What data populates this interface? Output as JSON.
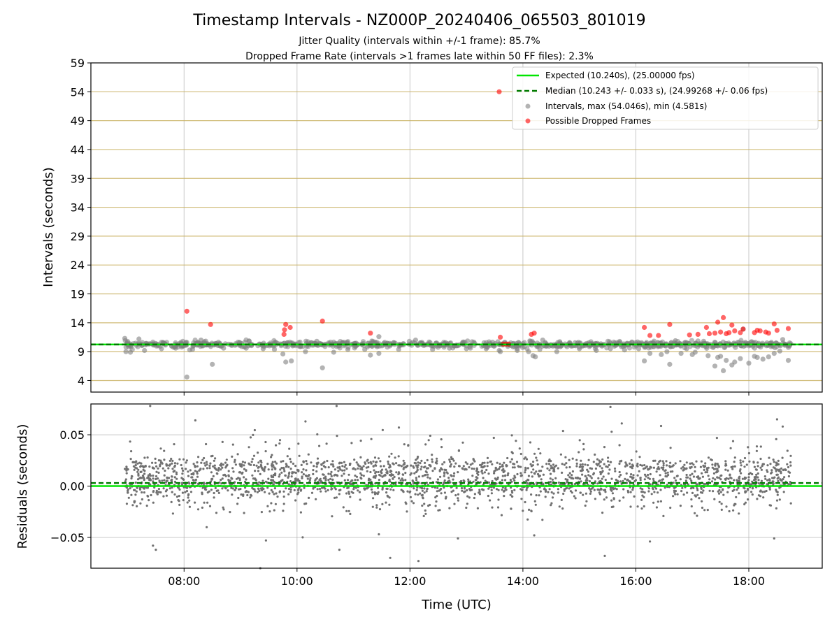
{
  "figure": {
    "title": "Timestamp Intervals - NZ000P_20240406_065503_801019",
    "subtitle1": "Jitter Quality (intervals within +/-1 frame): 85.7%",
    "subtitle2": "Dropped Frame Rate (intervals >1 frames late within 50 FF files): 2.3%"
  },
  "chart_data": [
    {
      "type": "scatter",
      "ylabel": "Intervals (seconds)",
      "ylim": [
        2,
        59
      ],
      "yticks": [
        4,
        9,
        14,
        19,
        24,
        29,
        34,
        39,
        44,
        49,
        54,
        59
      ],
      "xlim_hours": [
        6.35,
        19.3
      ],
      "grid": true,
      "legend_position": "top-right",
      "legend": [
        "Expected (10.240s), (25.00000 fps)",
        "Median (10.243 +/- 0.033 s), (24.99268 +/- 0.06 fps)",
        "Intervals, max (54.046s), min (4.581s)",
        "Possible Dropped Frames"
      ],
      "expected_line": 10.24,
      "median_line": 10.243,
      "series": [
        {
          "name": "Intervals, max (54.046s), min (4.581s)",
          "color": "#808080",
          "points": [
            [
              6.95,
              11.3
            ],
            [
              6.97,
              9.0
            ],
            [
              7.05,
              8.9
            ],
            [
              7.2,
              11.2
            ],
            [
              7.3,
              9.2
            ],
            [
              7.6,
              9.5
            ],
            [
              7.85,
              9.6
            ],
            [
              8.05,
              4.6
            ],
            [
              8.1,
              9.3
            ],
            [
              8.15,
              9.4
            ],
            [
              8.3,
              11.0
            ],
            [
              8.5,
              6.8
            ],
            [
              8.7,
              9.6
            ],
            [
              9.1,
              9.6
            ],
            [
              9.4,
              9.5
            ],
            [
              9.6,
              9.4
            ],
            [
              9.75,
              8.6
            ],
            [
              9.8,
              7.2
            ],
            [
              9.9,
              7.4
            ],
            [
              10.15,
              9.0
            ],
            [
              10.35,
              10.8
            ],
            [
              10.45,
              6.2
            ],
            [
              10.65,
              8.9
            ],
            [
              10.9,
              9.4
            ],
            [
              11.2,
              9.4
            ],
            [
              11.3,
              8.4
            ],
            [
              11.45,
              8.7
            ],
            [
              11.45,
              11.6
            ],
            [
              11.8,
              9.4
            ],
            [
              12.1,
              11.0
            ],
            [
              12.4,
              9.4
            ],
            [
              12.7,
              9.6
            ],
            [
              13.0,
              9.5
            ],
            [
              13.35,
              9.5
            ],
            [
              13.58,
              9.2
            ],
            [
              13.6,
              9.0
            ],
            [
              13.9,
              9.2
            ],
            [
              14.1,
              9.0
            ],
            [
              14.18,
              8.3
            ],
            [
              14.22,
              8.1
            ],
            [
              14.3,
              9.4
            ],
            [
              14.35,
              11.0
            ],
            [
              14.6,
              9.0
            ],
            [
              15.0,
              9.5
            ],
            [
              15.3,
              9.2
            ],
            [
              15.55,
              9.5
            ],
            [
              15.8,
              9.3
            ],
            [
              16.05,
              9.5
            ],
            [
              16.15,
              7.4
            ],
            [
              16.25,
              8.7
            ],
            [
              16.45,
              8.5
            ],
            [
              16.55,
              9.0
            ],
            [
              16.6,
              6.8
            ],
            [
              16.7,
              10.9
            ],
            [
              16.8,
              8.7
            ],
            [
              16.9,
              9.5
            ],
            [
              17.0,
              8.5
            ],
            [
              17.05,
              8.9
            ],
            [
              17.2,
              10.8
            ],
            [
              17.28,
              8.3
            ],
            [
              17.4,
              6.5
            ],
            [
              17.45,
              8.0
            ],
            [
              17.5,
              8.2
            ],
            [
              17.55,
              5.7
            ],
            [
              17.6,
              7.5
            ],
            [
              17.7,
              6.7
            ],
            [
              17.75,
              7.2
            ],
            [
              17.85,
              7.8
            ],
            [
              17.9,
              12.9
            ],
            [
              18.0,
              7.0
            ],
            [
              18.1,
              8.2
            ],
            [
              18.15,
              8.0
            ],
            [
              18.25,
              7.7
            ],
            [
              18.35,
              8.1
            ],
            [
              18.4,
              10.6
            ],
            [
              18.45,
              8.7
            ],
            [
              18.55,
              9.1
            ],
            [
              18.6,
              11.1
            ],
            [
              18.7,
              7.5
            ],
            [
              18.72,
              10.0
            ]
          ]
        },
        {
          "name": "Possible Dropped Frames",
          "color": "#ff0000",
          "points": [
            [
              8.05,
              16.0
            ],
            [
              8.47,
              13.7
            ],
            [
              9.77,
              12.0
            ],
            [
              9.78,
              12.8
            ],
            [
              9.8,
              13.7
            ],
            [
              9.88,
              13.2
            ],
            [
              10.45,
              14.3
            ],
            [
              11.3,
              12.2
            ],
            [
              13.58,
              54.0
            ],
            [
              13.6,
              11.5
            ],
            [
              13.65,
              10.3
            ],
            [
              13.7,
              10.3
            ],
            [
              13.75,
              10.3
            ],
            [
              14.15,
              12.0
            ],
            [
              14.2,
              12.2
            ],
            [
              16.15,
              13.2
            ],
            [
              16.25,
              11.8
            ],
            [
              16.4,
              11.8
            ],
            [
              16.6,
              13.7
            ],
            [
              16.95,
              11.9
            ],
            [
              17.1,
              12.0
            ],
            [
              17.25,
              13.2
            ],
            [
              17.3,
              12.1
            ],
            [
              17.4,
              12.2
            ],
            [
              17.45,
              14.1
            ],
            [
              17.5,
              12.4
            ],
            [
              17.55,
              14.9
            ],
            [
              17.6,
              12.1
            ],
            [
              17.65,
              12.3
            ],
            [
              17.7,
              13.6
            ],
            [
              17.75,
              12.6
            ],
            [
              17.85,
              12.3
            ],
            [
              17.9,
              12.9
            ],
            [
              18.1,
              12.3
            ],
            [
              18.15,
              12.7
            ],
            [
              18.2,
              12.6
            ],
            [
              18.3,
              12.4
            ],
            [
              18.35,
              12.2
            ],
            [
              18.45,
              13.8
            ],
            [
              18.5,
              12.7
            ],
            [
              18.7,
              13.0
            ]
          ]
        }
      ]
    },
    {
      "type": "scatter",
      "xlabel": "Time (UTC)",
      "ylabel": "Residuals (seconds)",
      "ylim": [
        -0.08,
        0.08
      ],
      "yticks": [
        0.05,
        0.0,
        -0.05
      ],
      "ytick_labels": [
        "0.05",
        "0.00",
        "−0.05"
      ],
      "xticks_hours": [
        8,
        10,
        12,
        14,
        16,
        18
      ],
      "xtick_labels": [
        "08:00",
        "10:00",
        "12:00",
        "14:00",
        "16:00",
        "18:00"
      ],
      "xlim_hours": [
        6.35,
        19.3
      ],
      "grid": true,
      "expected_line": 0.0,
      "median_line": 0.003,
      "series": [
        {
          "name": "Residuals",
          "color": "#707070",
          "time_range_hours": [
            6.95,
            18.75
          ],
          "count": 2400,
          "bands": [
            {
              "center": 0.001,
              "spread": 0.011,
              "fraction": 0.55
            },
            {
              "center": 0.019,
              "spread": 0.009,
              "fraction": 0.35
            },
            {
              "center": -0.018,
              "spread": 0.011,
              "fraction": 0.07
            },
            {
              "center": 0.04,
              "spread": 0.015,
              "fraction": 0.03
            }
          ],
          "outliers": [
            [
              7.4,
              0.078
            ],
            [
              7.45,
              -0.058
            ],
            [
              7.5,
              -0.062
            ],
            [
              8.2,
              0.064
            ],
            [
              8.4,
              -0.04
            ],
            [
              9.35,
              -0.08
            ],
            [
              9.45,
              -0.053
            ],
            [
              10.1,
              -0.05
            ],
            [
              10.15,
              0.063
            ],
            [
              10.7,
              0.078
            ],
            [
              10.75,
              -0.062
            ],
            [
              11.45,
              -0.047
            ],
            [
              11.65,
              -0.07
            ],
            [
              12.15,
              -0.073
            ],
            [
              12.85,
              -0.051
            ],
            [
              14.2,
              -0.048
            ],
            [
              15.45,
              -0.068
            ],
            [
              15.55,
              0.077
            ],
            [
              15.75,
              0.061
            ],
            [
              16.25,
              -0.054
            ],
            [
              18.45,
              -0.051
            ],
            [
              18.5,
              0.065
            ],
            [
              18.6,
              0.058
            ]
          ]
        }
      ]
    }
  ]
}
